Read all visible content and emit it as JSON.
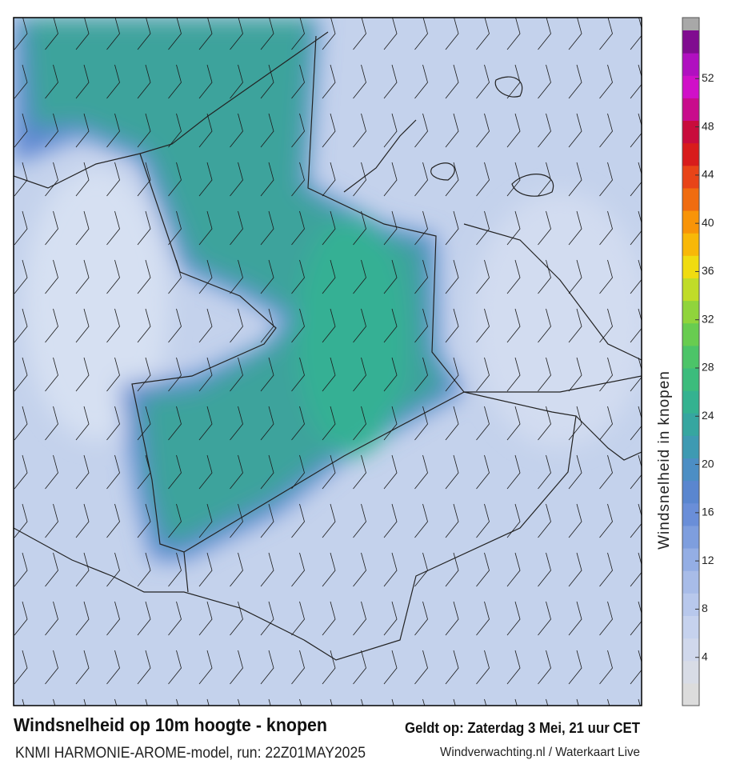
{
  "map": {
    "title": "Windsnelheid op 10m hoogte - knopen",
    "subtitle": "KNMI HARMONIE-AROME-model, run: 22Z01MAY2025",
    "valid_time": "Geldt op: Zaterdag 3 Mei, 21 uur CET",
    "credit": "Windverwachting.nl / Waterkaart Live"
  },
  "colorbar": {
    "label": "Windsnelheid in knopen",
    "lim": [
      0,
      56
    ],
    "ticks": [
      4,
      8,
      12,
      16,
      20,
      24,
      28,
      32,
      36,
      40,
      44,
      48,
      52
    ],
    "colors": [
      "#dcdcdc",
      "#d8dce6",
      "#d0d8ec",
      "#c6d2ee",
      "#b8c8ec",
      "#a8bce8",
      "#94aee4",
      "#7e9ede",
      "#6a8ed8",
      "#5a86cf",
      "#4c8ec4",
      "#3e9ab2",
      "#36a6a0",
      "#34b290",
      "#3cbc7c",
      "#4cc468",
      "#68cc50",
      "#90d43c",
      "#c0dc28",
      "#f0dc10",
      "#f8b808",
      "#f89408",
      "#f06c10",
      "#e84418",
      "#d81c1c",
      "#c80c3c",
      "#c80c8c",
      "#d010c8",
      "#b010c0",
      "#800c90"
    ],
    "over_color": "#a8a8a8"
  }
}
